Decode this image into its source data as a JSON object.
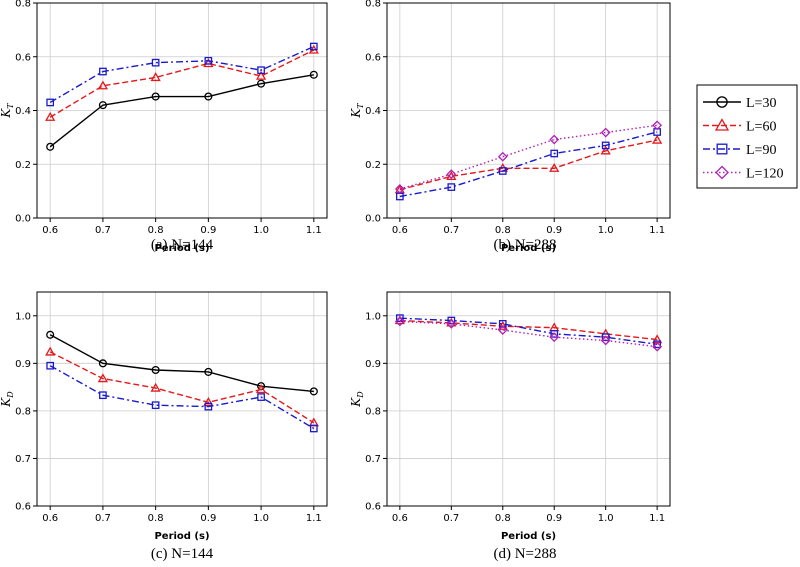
{
  "legend": {
    "entries": [
      {
        "label": "L=30",
        "color": "#000000",
        "marker": "circle",
        "dash": "solid"
      },
      {
        "label": "L=60",
        "color": "#e3191c",
        "marker": "triangle",
        "dash": "dashed"
      },
      {
        "label": "L=90",
        "color": "#1a1acc",
        "marker": "square",
        "dash": "dashdot"
      },
      {
        "label": "L=120",
        "color": "#b021b8",
        "marker": "diamond",
        "dash": "dotted"
      }
    ]
  },
  "chart_data": [
    {
      "type": "line",
      "caption": "(a)  N=144",
      "xlabel": "Period (s)",
      "ylabel_main": "K",
      "ylabel_sub": "T",
      "x": [
        0.6,
        0.7,
        0.8,
        0.9,
        1.0,
        1.1
      ],
      "xticks": [
        "0.6",
        "0.7",
        "0.8",
        "0.9",
        "1.0",
        "1.1"
      ],
      "ylim": [
        0.0,
        0.8
      ],
      "yticks": [
        "0.0",
        "0.2",
        "0.4",
        "0.6",
        "0.8"
      ],
      "grid": true,
      "series": [
        {
          "name": "L=30",
          "values": [
            0.265,
            0.42,
            0.452,
            0.452,
            0.5,
            0.533
          ]
        },
        {
          "name": "L=60",
          "values": [
            0.375,
            0.492,
            0.523,
            0.575,
            0.528,
            0.625
          ]
        },
        {
          "name": "L=90",
          "values": [
            0.43,
            0.545,
            0.578,
            0.585,
            0.55,
            0.638
          ]
        }
      ]
    },
    {
      "type": "line",
      "caption": "(b)  N=288",
      "xlabel": "Period (s)",
      "ylabel_main": "K",
      "ylabel_sub": "T",
      "x": [
        0.6,
        0.7,
        0.8,
        0.9,
        1.0,
        1.1
      ],
      "xticks": [
        "0.6",
        "0.7",
        "0.8",
        "0.9",
        "1.0",
        "1.1"
      ],
      "ylim": [
        0.0,
        0.8
      ],
      "yticks": [
        "0.0",
        "0.2",
        "0.4",
        "0.6",
        "0.8"
      ],
      "grid": true,
      "series": [
        {
          "name": "L=60",
          "values": [
            0.105,
            0.155,
            0.185,
            0.185,
            0.25,
            0.29
          ]
        },
        {
          "name": "L=90",
          "values": [
            0.08,
            0.115,
            0.175,
            0.24,
            0.27,
            0.32
          ]
        },
        {
          "name": "L=120",
          "values": [
            0.108,
            0.163,
            0.228,
            0.292,
            0.318,
            0.345
          ]
        }
      ]
    },
    {
      "type": "line",
      "caption": "(c)  N=144",
      "xlabel": "Period (s)",
      "ylabel_main": "K",
      "ylabel_sub": "D",
      "x": [
        0.6,
        0.7,
        0.8,
        0.9,
        1.0,
        1.1
      ],
      "xticks": [
        "0.6",
        "0.7",
        "0.8",
        "0.9",
        "1.0",
        "1.1"
      ],
      "ylim": [
        0.6,
        1.05
      ],
      "yticks": [
        "0.6",
        "0.7",
        "0.8",
        "0.9",
        "1.0"
      ],
      "grid": true,
      "series": [
        {
          "name": "L=30",
          "values": [
            0.96,
            0.9,
            0.886,
            0.882,
            0.852,
            0.841
          ]
        },
        {
          "name": "L=60",
          "values": [
            0.924,
            0.868,
            0.848,
            0.818,
            0.845,
            0.775
          ]
        },
        {
          "name": "L=90",
          "values": [
            0.895,
            0.833,
            0.812,
            0.809,
            0.829,
            0.763
          ]
        }
      ]
    },
    {
      "type": "line",
      "caption": "(d)  N=288",
      "xlabel": "Period (s)",
      "ylabel_main": "K",
      "ylabel_sub": "D",
      "x": [
        0.6,
        0.7,
        0.8,
        0.9,
        1.0,
        1.1
      ],
      "xticks": [
        "0.6",
        "0.7",
        "0.8",
        "0.9",
        "1.0",
        "1.1"
      ],
      "ylim": [
        0.6,
        1.05
      ],
      "yticks": [
        "0.6",
        "0.7",
        "0.8",
        "0.9",
        "1.0"
      ],
      "grid": true,
      "series": [
        {
          "name": "L=60",
          "values": [
            0.99,
            0.985,
            0.978,
            0.975,
            0.962,
            0.95
          ]
        },
        {
          "name": "L=90",
          "values": [
            0.995,
            0.99,
            0.983,
            0.962,
            0.955,
            0.94
          ]
        },
        {
          "name": "L=120",
          "values": [
            0.988,
            0.983,
            0.97,
            0.955,
            0.948,
            0.935
          ]
        }
      ]
    }
  ]
}
